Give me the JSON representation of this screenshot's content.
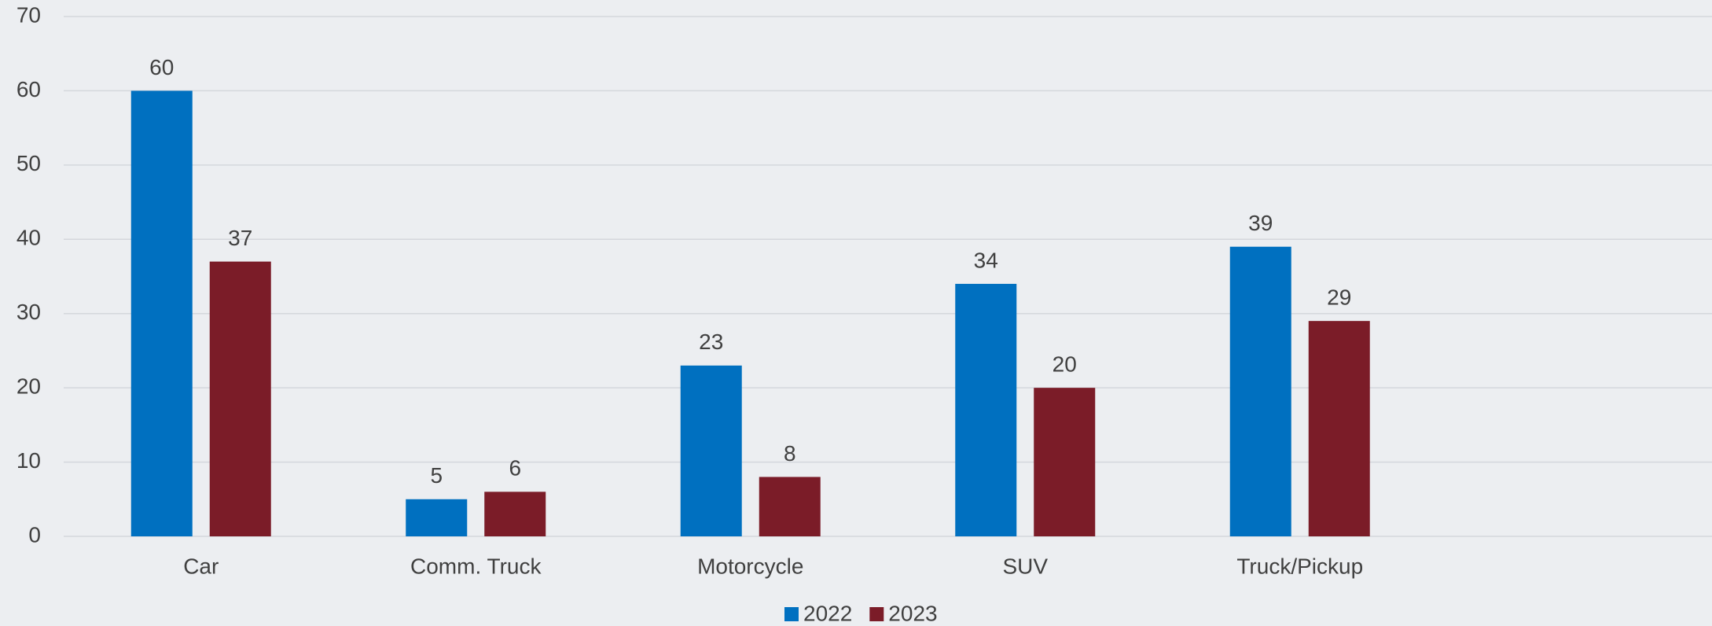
{
  "chart_data": {
    "type": "bar",
    "categories": [
      "Car",
      "Comm. Truck",
      "Motorcycle",
      "SUV",
      "Truck/Pickup",
      null
    ],
    "series": [
      {
        "name": "2022",
        "color": "#0070c0",
        "values": [
          60,
          5,
          23,
          34,
          39,
          null
        ]
      },
      {
        "name": "2023",
        "color": "#7b1c28",
        "values": [
          37,
          6,
          8,
          20,
          29,
          null
        ]
      }
    ],
    "ylim": [
      0,
      70
    ],
    "yticks": [
      0,
      10,
      20,
      30,
      40,
      50,
      60,
      70
    ],
    "grid": true,
    "legend": "bottom"
  }
}
